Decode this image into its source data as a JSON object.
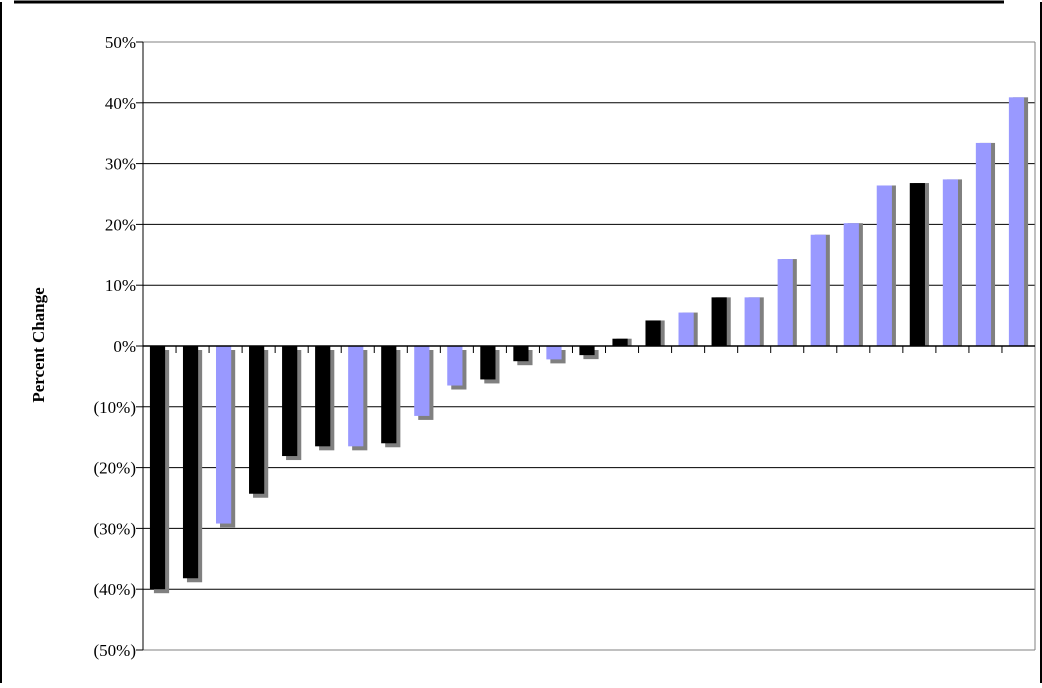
{
  "chart_data": {
    "type": "bar",
    "title": "",
    "xlabel": "",
    "ylabel": "Percent Change",
    "ylim": [
      -50,
      50
    ],
    "yticks": [
      50,
      40,
      30,
      20,
      10,
      0,
      -10,
      -20,
      -30,
      -40,
      -50
    ],
    "ytick_labels": [
      "50%",
      "40%",
      "30%",
      "20%",
      "10%",
      "0%",
      "(10%)",
      "(20%)",
      "(30%)",
      "(40%)",
      "(50%)"
    ],
    "grid": true,
    "legend": "none",
    "colors": {
      "dark": "#000000",
      "light": "#9999ff",
      "shadow": "#808080"
    },
    "series": [
      {
        "values": [
          -40.0,
          -38.2,
          -29.2,
          -24.3,
          -18.1,
          -16.5,
          -16.5,
          -16.0,
          -11.5,
          -6.5,
          -5.5,
          -2.5,
          -2.2,
          -1.5,
          1.2,
          4.2,
          5.5,
          8.0,
          8.0,
          14.3,
          18.3,
          20.2,
          26.4,
          26.8,
          27.4,
          33.4,
          40.9
        ],
        "color_keys": [
          "dark",
          "dark",
          "light",
          "dark",
          "dark",
          "dark",
          "light",
          "dark",
          "light",
          "light",
          "dark",
          "dark",
          "light",
          "dark",
          "dark",
          "dark",
          "light",
          "dark",
          "light",
          "light",
          "light",
          "light",
          "light",
          "dark",
          "light",
          "light",
          "light"
        ]
      }
    ]
  }
}
